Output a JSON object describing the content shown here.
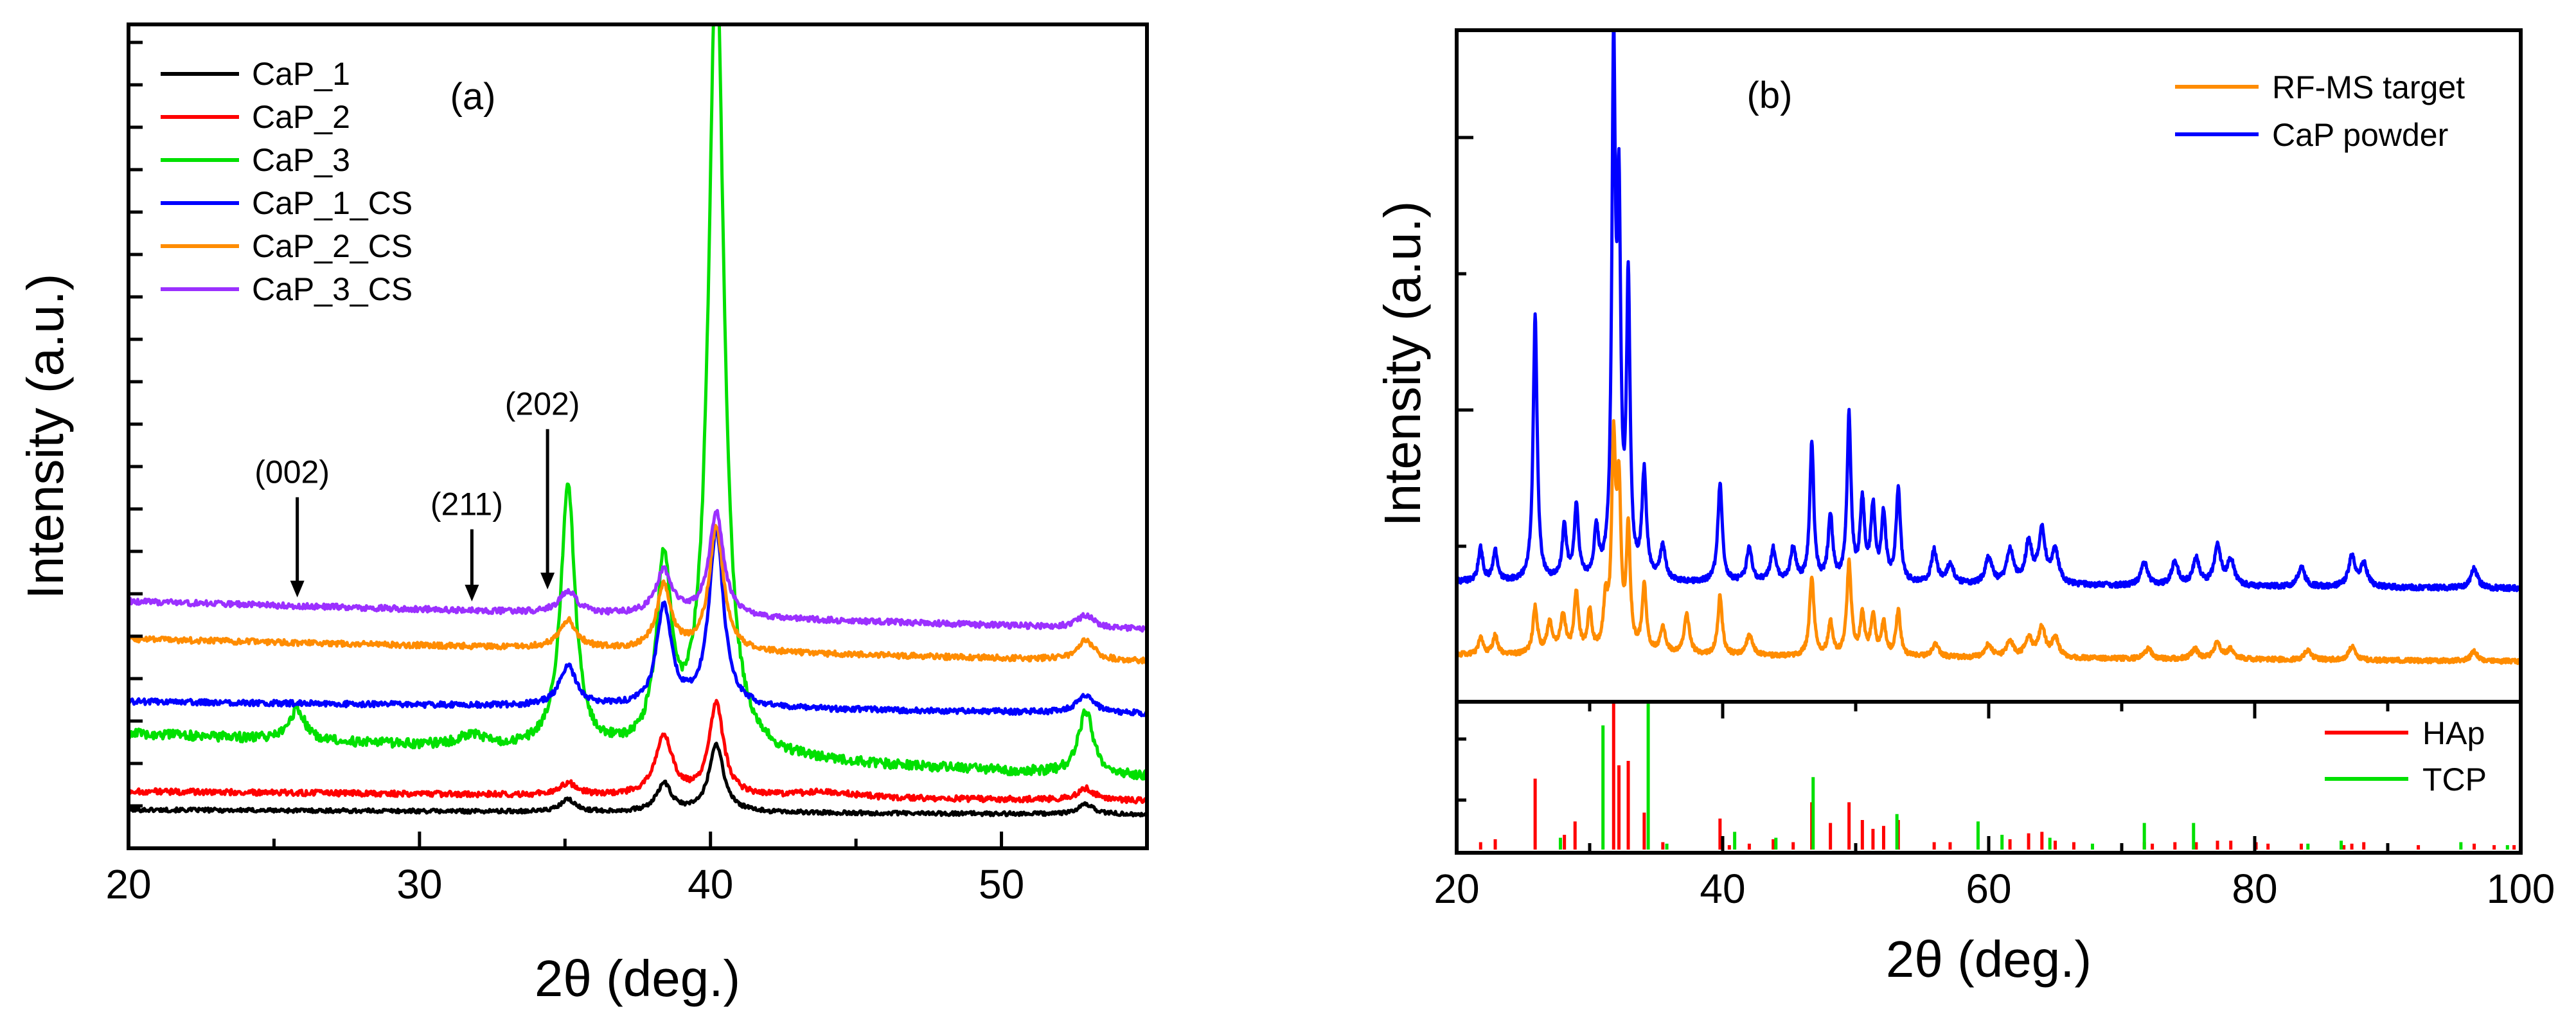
{
  "chart_data": [
    {
      "panel": "(a)",
      "type": "line",
      "xlabel": "2θ (deg.)",
      "ylabel": "Intensity (a.u.)",
      "xlim": [
        20,
        55
      ],
      "ylim": [
        0,
        100
      ],
      "xticks": [
        20,
        30,
        40,
        50
      ],
      "grid": false,
      "legend_position": "top-left",
      "series": [
        {
          "name": "CaP_1",
          "color": "#000000",
          "baseline": 2.0,
          "slope": -0.6,
          "noise": 0.25,
          "peaks": [
            [
              35.1,
              1.5,
              0.3
            ],
            [
              38.4,
              3.5,
              0.3
            ],
            [
              40.2,
              8.5,
              0.3
            ],
            [
              52.9,
              1.2,
              0.35
            ]
          ]
        },
        {
          "name": "CaP_2",
          "color": "#ff0000",
          "baseline": 4.3,
          "slope": -1.2,
          "noise": 0.35,
          "peaks": [
            [
              35.1,
              1.5,
              0.35
            ],
            [
              38.4,
              7.5,
              0.35
            ],
            [
              40.2,
              11.5,
              0.3
            ],
            [
              44.0,
              0.7,
              1.2
            ],
            [
              52.9,
              1.5,
              0.35
            ]
          ]
        },
        {
          "name": "CaP_3",
          "color": "#00e000",
          "baseline": 11.5,
          "slope": -5.5,
          "noise": 0.6,
          "peaks": [
            [
              25.8,
              4.0,
              0.3
            ],
            [
              31.8,
              1.5,
              0.5
            ],
            [
              35.1,
              33.0,
              0.3
            ],
            [
              38.4,
              23.0,
              0.3
            ],
            [
              40.2,
              100.0,
              0.32
            ],
            [
              52.9,
              8.0,
              0.3
            ]
          ]
        },
        {
          "name": "CaP_1_CS",
          "color": "#0000ff",
          "baseline": 15.5,
          "slope": -1.5,
          "noise": 0.35,
          "peaks": [
            [
              35.1,
              5.0,
              0.35
            ],
            [
              38.4,
              12.5,
              0.3
            ],
            [
              40.2,
              22.0,
              0.3
            ],
            [
              52.9,
              2.2,
              0.35
            ]
          ]
        },
        {
          "name": "CaP_2_CS",
          "color": "#ff8c00",
          "baseline": 23.3,
          "slope": -2.8,
          "noise": 0.35,
          "peaks": [
            [
              35.1,
              3.5,
              0.35
            ],
            [
              38.4,
              8.0,
              0.3
            ],
            [
              40.2,
              15.5,
              0.3
            ],
            [
              52.9,
              2.5,
              0.35
            ]
          ]
        },
        {
          "name": "CaP_3_CS",
          "color": "#9b30ff",
          "baseline": 28.0,
          "slope": -3.5,
          "noise": 0.35,
          "peaks": [
            [
              35.1,
              2.8,
              0.35
            ],
            [
              38.4,
              5.5,
              0.35
            ],
            [
              40.2,
              13.0,
              0.3
            ],
            [
              52.9,
              1.5,
              0.35
            ]
          ]
        }
      ],
      "annotations": [
        {
          "label": "(002)",
          "x": 25.8,
          "y_tip": 28.5,
          "y_text": 41.0
        },
        {
          "label": "(211)",
          "x": 31.8,
          "y_tip": 28.0,
          "y_text": 37.0
        },
        {
          "label": "(202)",
          "x": 34.4,
          "y_tip": 29.5,
          "y_text": 49.5
        }
      ]
    },
    {
      "panel": "(b)",
      "type": "line",
      "xlabel": "2θ (deg.)",
      "ylabel": "Intensity (a.u.)",
      "xlim": [
        20,
        100
      ],
      "ylim": [
        0,
        100
      ],
      "xticks": [
        20,
        40,
        60,
        80,
        100
      ],
      "grid": false,
      "legend_position": "top-right",
      "series": [
        {
          "name": "RF-MS target",
          "color": "#ff8c00",
          "baseline": 4.0,
          "slope": -1.0,
          "noise": 0.35,
          "peaks": [
            [
              21.8,
              2.5,
              0.2
            ],
            [
              22.9,
              3.0,
              0.2
            ],
            [
              25.9,
              7.0,
              0.2
            ],
            [
              27.0,
              4.5,
              0.25
            ],
            [
              28.0,
              5.5,
              0.25
            ],
            [
              29.0,
              9.0,
              0.2
            ],
            [
              30.0,
              6.0,
              0.2
            ],
            [
              31.2,
              7.0,
              0.2
            ],
            [
              31.8,
              30.0,
              0.18
            ],
            [
              32.2,
              23.0,
              0.18
            ],
            [
              32.9,
              18.0,
              0.18
            ],
            [
              34.1,
              10.0,
              0.2
            ],
            [
              35.5,
              4.0,
              0.25
            ],
            [
              37.3,
              6.0,
              0.25
            ],
            [
              39.8,
              9.0,
              0.2
            ],
            [
              42.0,
              3.0,
              0.3
            ],
            [
              46.7,
              12.0,
              0.2
            ],
            [
              48.1,
              5.0,
              0.2
            ],
            [
              49.5,
              14.0,
              0.2
            ],
            [
              50.5,
              6.0,
              0.2
            ],
            [
              51.3,
              6.0,
              0.2
            ],
            [
              52.1,
              5.0,
              0.2
            ],
            [
              53.2,
              7.0,
              0.2
            ],
            [
              56.0,
              2.0,
              0.3
            ],
            [
              60.0,
              2.0,
              0.3
            ],
            [
              61.6,
              2.5,
              0.3
            ],
            [
              63.0,
              3.0,
              0.3
            ],
            [
              64.0,
              4.5,
              0.3
            ],
            [
              65.0,
              3.0,
              0.3
            ],
            [
              72.0,
              1.5,
              0.3
            ],
            [
              75.5,
              1.5,
              0.3
            ],
            [
              77.2,
              2.5,
              0.3
            ],
            [
              78.2,
              1.5,
              0.3
            ],
            [
              84.0,
              1.5,
              0.3
            ],
            [
              87.3,
              2.0,
              0.3
            ],
            [
              96.5,
              1.5,
              0.3
            ]
          ]
        },
        {
          "name": "CaP powder",
          "color": "#0000ff",
          "baseline": 15.0,
          "slope": -1.0,
          "noise": 0.4,
          "peaks": [
            [
              21.8,
              5.0,
              0.2
            ],
            [
              22.9,
              4.5,
              0.2
            ],
            [
              25.9,
              40.0,
              0.18
            ],
            [
              28.1,
              8.0,
              0.2
            ],
            [
              29.0,
              11.0,
              0.2
            ],
            [
              30.5,
              7.0,
              0.2
            ],
            [
              31.8,
              77.0,
              0.16
            ],
            [
              32.2,
              52.0,
              0.16
            ],
            [
              32.9,
              44.0,
              0.16
            ],
            [
              34.1,
              16.0,
              0.2
            ],
            [
              35.5,
              5.0,
              0.25
            ],
            [
              39.8,
              15.0,
              0.2
            ],
            [
              42.0,
              5.0,
              0.25
            ],
            [
              43.8,
              5.0,
              0.25
            ],
            [
              45.3,
              5.0,
              0.25
            ],
            [
              46.7,
              21.0,
              0.18
            ],
            [
              48.1,
              10.0,
              0.2
            ],
            [
              49.5,
              25.0,
              0.18
            ],
            [
              50.5,
              12.0,
              0.2
            ],
            [
              51.3,
              11.0,
              0.2
            ],
            [
              52.1,
              10.0,
              0.2
            ],
            [
              53.2,
              14.0,
              0.2
            ],
            [
              55.9,
              5.0,
              0.25
            ],
            [
              57.1,
              3.0,
              0.3
            ],
            [
              60.0,
              4.0,
              0.3
            ],
            [
              61.6,
              5.0,
              0.3
            ],
            [
              63.0,
              6.0,
              0.3
            ],
            [
              64.0,
              8.0,
              0.3
            ],
            [
              65.0,
              5.0,
              0.3
            ],
            [
              71.7,
              3.5,
              0.3
            ],
            [
              74.0,
              3.5,
              0.3
            ],
            [
              75.6,
              4.0,
              0.3
            ],
            [
              77.2,
              6.0,
              0.3
            ],
            [
              78.2,
              4.0,
              0.3
            ],
            [
              83.5,
              3.0,
              0.3
            ],
            [
              87.3,
              4.5,
              0.3
            ],
            [
              88.2,
              3.5,
              0.3
            ],
            [
              96.5,
              3.0,
              0.3
            ]
          ]
        }
      ],
      "reference_series": [
        {
          "name": "HAp",
          "color": "#ff0000",
          "lines": [
            [
              21.8,
              5
            ],
            [
              22.9,
              7
            ],
            [
              25.9,
              48
            ],
            [
              28.1,
              10
            ],
            [
              28.9,
              19
            ],
            [
              31.8,
              100
            ],
            [
              32.2,
              57
            ],
            [
              32.9,
              60
            ],
            [
              34.1,
              25
            ],
            [
              35.5,
              5
            ],
            [
              39.8,
              21
            ],
            [
              40.5,
              3
            ],
            [
              42.0,
              4
            ],
            [
              43.8,
              7
            ],
            [
              45.3,
              5
            ],
            [
              46.7,
              32
            ],
            [
              48.1,
              18
            ],
            [
              49.5,
              32
            ],
            [
              50.5,
              20
            ],
            [
              51.3,
              14
            ],
            [
              52.1,
              16
            ],
            [
              53.2,
              20
            ],
            [
              55.9,
              5
            ],
            [
              57.1,
              5
            ],
            [
              60.0,
              5
            ],
            [
              61.6,
              7
            ],
            [
              63.0,
              11
            ],
            [
              64.0,
              12
            ],
            [
              65.0,
              6
            ],
            [
              66.4,
              5
            ],
            [
              71.7,
              5
            ],
            [
              72.3,
              4
            ],
            [
              74.0,
              5
            ],
            [
              75.6,
              5
            ],
            [
              77.2,
              6
            ],
            [
              78.2,
              6
            ],
            [
              80.1,
              5
            ],
            [
              81.0,
              4
            ],
            [
              83.5,
              4
            ],
            [
              86.7,
              3
            ],
            [
              87.3,
              4
            ],
            [
              88.2,
              5
            ],
            [
              90.0,
              3
            ],
            [
              92.3,
              3
            ],
            [
              96.5,
              4
            ],
            [
              98.0,
              3
            ],
            [
              99.5,
              3
            ]
          ]
        },
        {
          "name": "TCP",
          "color": "#00e000",
          "lines": [
            [
              31.0,
              84
            ],
            [
              34.4,
              100
            ],
            [
              27.8,
              8
            ],
            [
              35.8,
              4
            ],
            [
              40.9,
              12
            ],
            [
              44.0,
              8
            ],
            [
              46.8,
              49
            ],
            [
              53.1,
              24
            ],
            [
              59.2,
              19
            ],
            [
              61.0,
              10
            ],
            [
              64.6,
              8
            ],
            [
              67.8,
              4
            ],
            [
              71.7,
              18
            ],
            [
              75.4,
              18
            ],
            [
              84.0,
              4
            ],
            [
              86.5,
              6
            ],
            [
              95.5,
              5
            ],
            [
              99.0,
              3
            ]
          ]
        }
      ],
      "legend_top": [
        "RF-MS target",
        "CaP powder"
      ],
      "legend_bottom": [
        "HAp",
        "TCP"
      ]
    }
  ]
}
